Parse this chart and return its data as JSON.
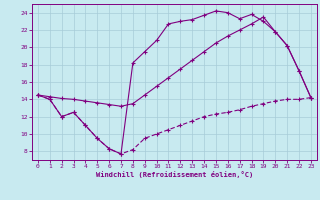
{
  "xlabel": "Windchill (Refroidissement éolien,°C)",
  "bg_color": "#c8eaf0",
  "line_color": "#800080",
  "grid_color": "#a8ccd8",
  "xlim": [
    -0.5,
    23.5
  ],
  "ylim": [
    7,
    25
  ],
  "xticks": [
    0,
    1,
    2,
    3,
    4,
    5,
    6,
    7,
    8,
    9,
    10,
    11,
    12,
    13,
    14,
    15,
    16,
    17,
    18,
    19,
    20,
    21,
    22,
    23
  ],
  "yticks": [
    8,
    10,
    12,
    14,
    16,
    18,
    20,
    22,
    24
  ],
  "curve1_x": [
    0,
    1,
    2,
    3,
    4,
    5,
    6,
    7,
    8,
    9,
    10,
    11,
    12,
    13,
    14,
    15,
    16,
    17,
    18,
    19,
    20,
    21,
    22,
    23
  ],
  "curve1_y": [
    14.5,
    14.0,
    12.0,
    12.5,
    11.0,
    9.5,
    8.3,
    7.7,
    8.2,
    9.5,
    10.0,
    10.5,
    11.0,
    11.5,
    12.0,
    12.3,
    12.5,
    12.8,
    13.2,
    13.5,
    13.8,
    14.0,
    14.0,
    14.2
  ],
  "curve2_x": [
    0,
    1,
    2,
    3,
    4,
    5,
    6,
    7,
    8,
    9,
    10,
    11,
    12,
    13,
    14,
    15,
    16,
    17,
    18,
    19,
    20,
    21,
    22,
    23
  ],
  "curve2_y": [
    14.5,
    14.0,
    12.0,
    12.5,
    11.0,
    9.5,
    8.3,
    7.7,
    18.2,
    19.5,
    20.8,
    22.7,
    23.0,
    23.2,
    23.7,
    24.2,
    24.0,
    23.3,
    23.8,
    23.0,
    21.8,
    20.2,
    17.3,
    14.2
  ],
  "curve3_x": [
    0,
    1,
    2,
    3,
    4,
    5,
    6,
    7,
    8,
    9,
    10,
    11,
    12,
    13,
    14,
    15,
    16,
    17,
    18,
    19,
    20,
    21,
    22,
    23
  ],
  "curve3_y": [
    14.5,
    14.3,
    14.1,
    14.0,
    13.8,
    13.6,
    13.4,
    13.2,
    13.5,
    14.5,
    15.5,
    16.5,
    17.5,
    18.5,
    19.5,
    20.5,
    21.3,
    22.0,
    22.7,
    23.5,
    21.8,
    20.2,
    17.3,
    14.2
  ]
}
